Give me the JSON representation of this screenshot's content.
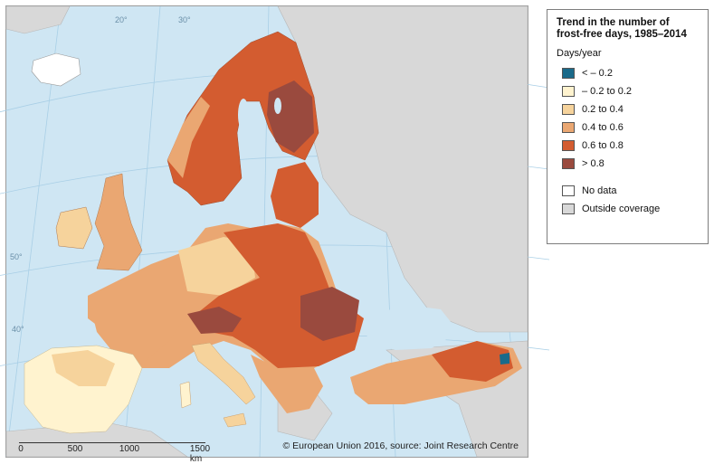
{
  "legend": {
    "title_line1": "Trend in the number of",
    "title_line2": "frost-free days, 1985–2014",
    "unit": "Days/year",
    "classes": [
      {
        "label": "< – 0.2",
        "color": "#1a6a8a"
      },
      {
        "label": "– 0.2 to 0.2",
        "color": "#fff3cf"
      },
      {
        "label": "0.2 to 0.4",
        "color": "#f6d39c"
      },
      {
        "label": "0.4 to 0.6",
        "color": "#eaa772"
      },
      {
        "label": "0.6 to 0.8",
        "color": "#d35c30"
      },
      {
        "label": "> 0.8",
        "color": "#9a4a3e"
      }
    ],
    "no_data": {
      "label": "No data",
      "color": "#ffffff"
    },
    "outside": {
      "label": "Outside coverage",
      "color": "#d8d8d8"
    }
  },
  "map": {
    "sea_color": "#cfe6f3",
    "graticule_labels": [
      "20°",
      "30°",
      "40°",
      "50°"
    ],
    "scale_labels": [
      "0",
      "500",
      "1000",
      "1500 km"
    ],
    "credit": "© European Union 2016, source: Joint Research Centre"
  }
}
